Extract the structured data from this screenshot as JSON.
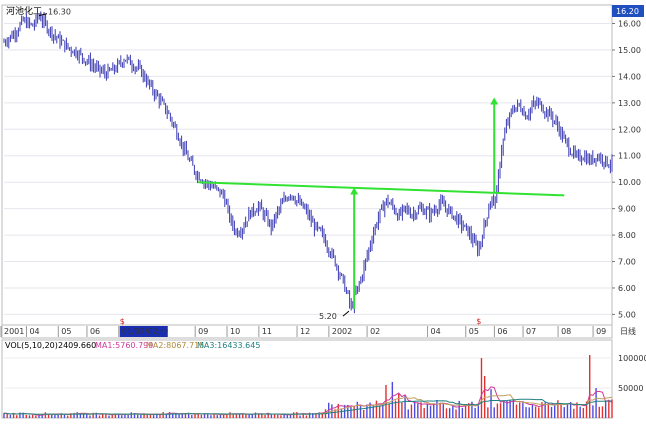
{
  "chart_data": {
    "type": "candlestick",
    "title": "河池化工",
    "price_badge": "16.20",
    "y_ticks": [
      "16.00",
      "15.00",
      "14.00",
      "13.00",
      "12.00",
      "11.00",
      "10.00",
      "9.00",
      "8.00",
      "7.00",
      "6.00",
      "5.00"
    ],
    "ylim": [
      4.6,
      16.7
    ],
    "x_labels": [
      "2001",
      "04",
      "05",
      "06",
      "01/07/02,一",
      "09",
      "10",
      "11",
      "12",
      "2002",
      "02",
      "04",
      "05",
      "06",
      "07",
      "08",
      "09",
      "日线"
    ],
    "annotations": {
      "high_label": "16.30",
      "low_label": "5.20",
      "split_marker": "$"
    },
    "price_path": [
      [
        0,
        15.3
      ],
      [
        3,
        15.6
      ],
      [
        6,
        16.1
      ],
      [
        9,
        15.9
      ],
      [
        11,
        16.3
      ],
      [
        14,
        15.8
      ],
      [
        17,
        15.4
      ],
      [
        20,
        15.1
      ],
      [
        23,
        14.9
      ],
      [
        26,
        14.6
      ],
      [
        29,
        14.3
      ],
      [
        32,
        14.1
      ],
      [
        35,
        14.3
      ],
      [
        38,
        14.7
      ],
      [
        40,
        14.5
      ],
      [
        43,
        14.2
      ],
      [
        46,
        13.6
      ],
      [
        49,
        13.1
      ],
      [
        52,
        12.5
      ],
      [
        55,
        11.7
      ],
      [
        57,
        11.1
      ],
      [
        60,
        10.4
      ],
      [
        63,
        10.0
      ],
      [
        66,
        9.8
      ],
      [
        69,
        9.5
      ],
      [
        71,
        8.6
      ],
      [
        73,
        8.1
      ],
      [
        75,
        8.3
      ],
      [
        77,
        8.8
      ],
      [
        80,
        9.1
      ],
      [
        82,
        8.7
      ],
      [
        84,
        8.3
      ],
      [
        86,
        8.9
      ],
      [
        88,
        9.3
      ],
      [
        90,
        9.6
      ],
      [
        92,
        9.3
      ],
      [
        95,
        8.9
      ],
      [
        97,
        8.4
      ],
      [
        100,
        8.0
      ],
      [
        102,
        7.5
      ],
      [
        104,
        7.0
      ],
      [
        106,
        6.4
      ],
      [
        108,
        5.7
      ],
      [
        109,
        5.2
      ],
      [
        110,
        5.6
      ],
      [
        112,
        6.3
      ],
      [
        114,
        7.2
      ],
      [
        116,
        8.1
      ],
      [
        118,
        8.8
      ],
      [
        120,
        9.3
      ],
      [
        122,
        9.1
      ],
      [
        124,
        8.7
      ],
      [
        126,
        9.0
      ],
      [
        128,
        8.8
      ],
      [
        131,
        9.0
      ],
      [
        134,
        8.8
      ],
      [
        137,
        9.2
      ],
      [
        140,
        8.9
      ],
      [
        143,
        8.5
      ],
      [
        146,
        8.1
      ],
      [
        149,
        7.4
      ],
      [
        150,
        7.9
      ],
      [
        152,
        8.9
      ],
      [
        153,
        9.4
      ],
      [
        154,
        9.2
      ],
      [
        155,
        9.7
      ],
      [
        156,
        11.1
      ],
      [
        158,
        12.2
      ],
      [
        160,
        12.8
      ],
      [
        162,
        12.9
      ],
      [
        164,
        12.5
      ],
      [
        166,
        12.9
      ],
      [
        168,
        13.0
      ],
      [
        170,
        12.7
      ],
      [
        172,
        12.5
      ],
      [
        174,
        12.1
      ],
      [
        176,
        11.6
      ],
      [
        178,
        11.2
      ],
      [
        180,
        10.9
      ],
      [
        182,
        11.0
      ],
      [
        184,
        10.8
      ],
      [
        186,
        11.0
      ],
      [
        188,
        10.9
      ],
      [
        190,
        10.7
      ]
    ],
    "volume": {
      "label": "VOL(5,10,20)",
      "value": "2409.660",
      "ma1": "MA1:5760.799",
      "ma2": "MA2:8067.715",
      "ma3": "MA3:16433.645",
      "y_ticks": [
        "100000",
        "50000"
      ],
      "ylim": [
        0,
        110000
      ],
      "big_bars": [
        [
          120,
          55000
        ],
        [
          122,
          60000
        ],
        [
          124,
          40000
        ],
        [
          126,
          38000
        ],
        [
          150,
          100000
        ],
        [
          151,
          70000
        ],
        [
          153,
          48000
        ],
        [
          160,
          30000
        ],
        [
          184,
          105000
        ],
        [
          186,
          50000
        ]
      ],
      "colors": {
        "up": "#e03030",
        "down": "#4a4ae0",
        "ma1": "#d03a9a",
        "ma2": "#c0a060",
        "ma3": "#208080"
      }
    },
    "neckline": {
      "from": [
        61,
        10.0
      ],
      "to": [
        176,
        9.5
      ],
      "color": "#32e232"
    },
    "arrows": [
      {
        "x": 110,
        "from": 5.2,
        "to": 9.8,
        "color": "#32e232"
      },
      {
        "x": 154,
        "from": 9.6,
        "to": 13.2,
        "color": "#32e232"
      }
    ]
  }
}
